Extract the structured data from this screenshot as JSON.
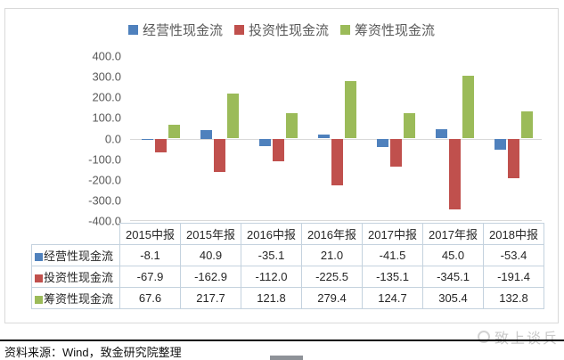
{
  "chart_data": {
    "type": "bar",
    "title": "",
    "categories": [
      "2015中报",
      "2015年报",
      "2016中报",
      "2016年报",
      "2017中报",
      "2017年报",
      "2018中报"
    ],
    "series": [
      {
        "id": "operating",
        "name": "经营性现金流",
        "color": "#4f81bd",
        "values": [
          -8.1,
          40.9,
          -35.1,
          21.0,
          -41.5,
          45.0,
          -53.4
        ]
      },
      {
        "id": "investing",
        "name": "投资性现金流",
        "color": "#c0504d",
        "values": [
          -67.9,
          -162.9,
          -112.0,
          -225.5,
          -135.1,
          -345.1,
          -191.4
        ]
      },
      {
        "id": "financing",
        "name": "筹资性现金流",
        "color": "#9bbb59",
        "values": [
          67.6,
          217.7,
          121.8,
          279.4,
          124.7,
          305.4,
          132.8
        ]
      }
    ],
    "xlabel": "",
    "ylabel": "",
    "ylim": [
      -400,
      400
    ],
    "ytick_step": 100,
    "ytick_labels": [
      "400.0",
      "300.0",
      "200.0",
      "100.0",
      "0.0",
      "-100.0",
      "-200.0",
      "-300.0",
      "-400.0"
    ],
    "grid": false,
    "legend_position": "top",
    "has_data_table": true
  },
  "footer": {
    "source_text": "资料来源：Wind，致金研究院整理"
  },
  "watermark": {
    "text": "致上谈兵"
  }
}
